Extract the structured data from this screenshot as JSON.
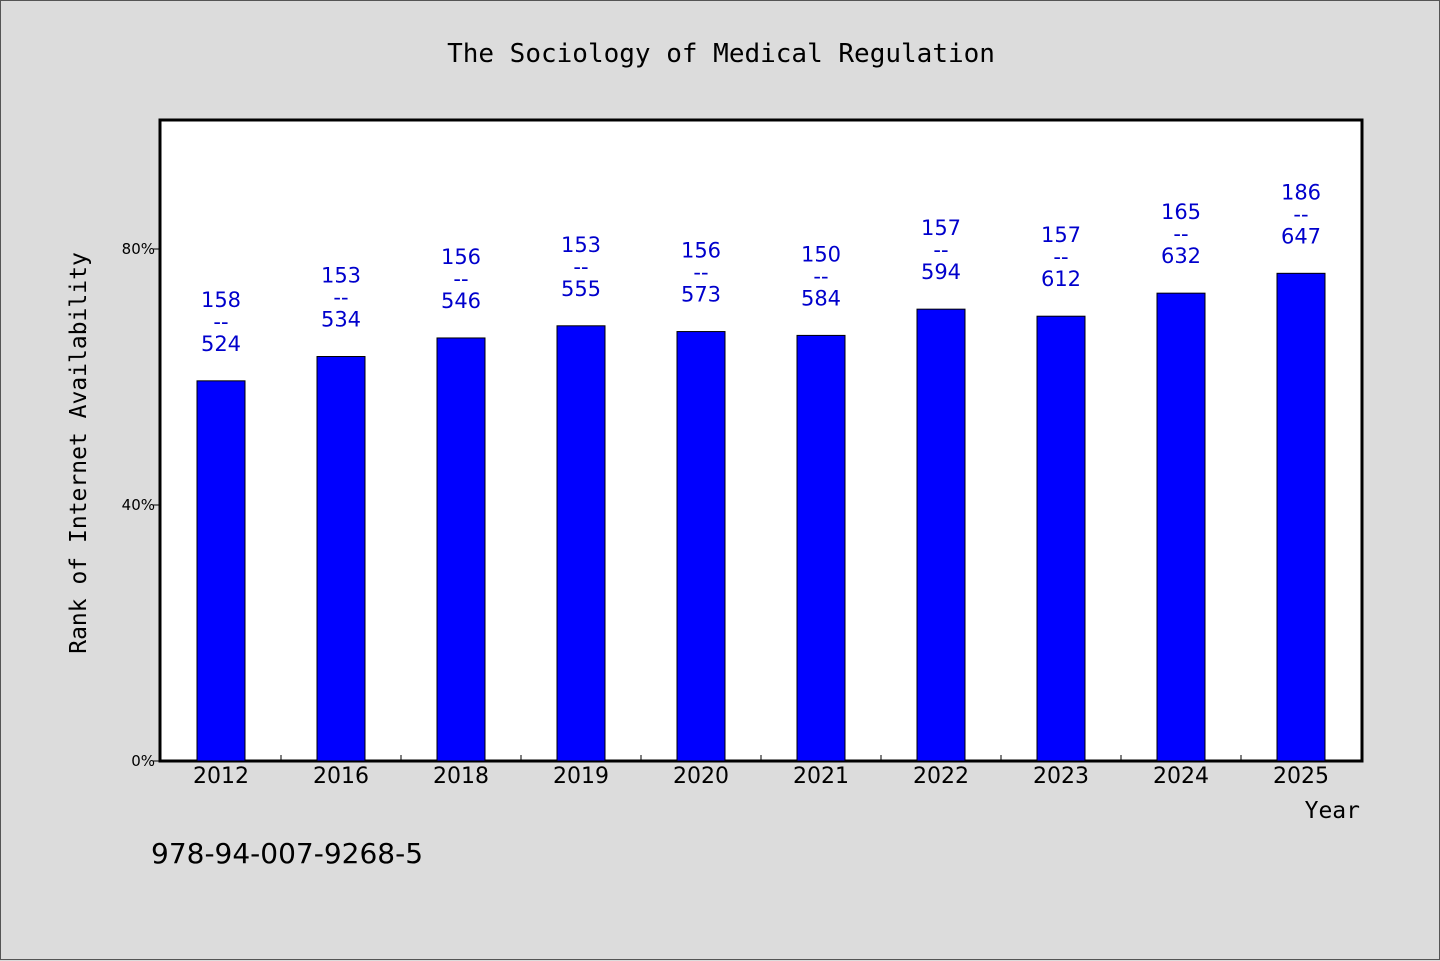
{
  "chart_data": {
    "type": "bar",
    "title": "The Sociology of Medical Regulation",
    "xlabel": "Year",
    "ylabel": "Rank of Internet Availability",
    "categories": [
      "2012",
      "2016",
      "2018",
      "2019",
      "2020",
      "2021",
      "2022",
      "2023",
      "2024",
      "2025"
    ],
    "series": [
      {
        "values": [
          59.4,
          63.2,
          66.1,
          68.0,
          67.1,
          66.5,
          70.6,
          69.5,
          73.1,
          76.2
        ],
        "color": "#0000ff"
      }
    ],
    "data_labels": [
      {
        "top": "158",
        "sep": "--",
        "bottom": "524"
      },
      {
        "top": "153",
        "sep": "--",
        "bottom": "534"
      },
      {
        "top": "156",
        "sep": "--",
        "bottom": "546"
      },
      {
        "top": "153",
        "sep": "--",
        "bottom": "555"
      },
      {
        "top": "156",
        "sep": "--",
        "bottom": "573"
      },
      {
        "top": "150",
        "sep": "--",
        "bottom": "584"
      },
      {
        "top": "157",
        "sep": "--",
        "bottom": "594"
      },
      {
        "top": "157",
        "sep": "--",
        "bottom": "612"
      },
      {
        "top": "165",
        "sep": "--",
        "bottom": "632"
      },
      {
        "top": "186",
        "sep": "--",
        "bottom": "647"
      }
    ],
    "ylim": [
      0,
      100
    ],
    "yticks": [
      0,
      40,
      80
    ],
    "ytick_labels": [
      "0%",
      "40%",
      "80%"
    ],
    "grid": false,
    "legend": "none"
  },
  "footer_text": "978-94-007-9268-5",
  "colors": {
    "background": "#dcdcdc",
    "plot_area": "#ffffff",
    "bar": "#0000ff",
    "data_label": "#0000cc"
  }
}
